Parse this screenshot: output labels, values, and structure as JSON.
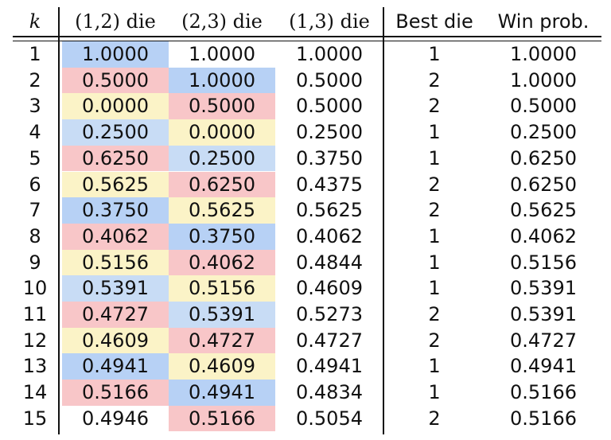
{
  "colors": {
    "blue": "#c8dcf5",
    "blue_strong": "#b7d1f5",
    "red": "#f8c6c8",
    "yellow": "#fbf3c7"
  },
  "headers": [
    "k",
    "(1,2) die",
    "(2,3) die",
    "(1,3) die",
    "Best die",
    "Win prob."
  ],
  "rows": [
    {
      "k": "1",
      "d12": "1.0000",
      "d23": "1.0000",
      "d13": "1.0000",
      "best": "1",
      "win": "1.0000",
      "c12": "blue_strong",
      "c23": ""
    },
    {
      "k": "2",
      "d12": "0.5000",
      "d23": "1.0000",
      "d13": "0.5000",
      "best": "2",
      "win": "1.0000",
      "c12": "red",
      "c23": "blue_strong"
    },
    {
      "k": "3",
      "d12": "0.0000",
      "d23": "0.5000",
      "d13": "0.5000",
      "best": "2",
      "win": "0.5000",
      "c12": "yellow",
      "c23": "red"
    },
    {
      "k": "4",
      "d12": "0.2500",
      "d23": "0.0000",
      "d13": "0.2500",
      "best": "1",
      "win": "0.2500",
      "c12": "blue",
      "c23": "yellow"
    },
    {
      "k": "5",
      "d12": "0.6250",
      "d23": "0.2500",
      "d13": "0.3750",
      "best": "1",
      "win": "0.6250",
      "c12": "red",
      "c23": "blue"
    },
    {
      "k": "6",
      "d12": "0.5625",
      "d23": "0.6250",
      "d13": "0.4375",
      "best": "2",
      "win": "0.6250",
      "c12": "yellow",
      "c23": "red"
    },
    {
      "k": "7",
      "d12": "0.3750",
      "d23": "0.5625",
      "d13": "0.5625",
      "best": "2",
      "win": "0.5625",
      "c12": "blue_strong",
      "c23": "yellow"
    },
    {
      "k": "8",
      "d12": "0.4062",
      "d23": "0.3750",
      "d13": "0.4062",
      "best": "1",
      "win": "0.4062",
      "c12": "red",
      "c23": "blue_strong"
    },
    {
      "k": "9",
      "d12": "0.5156",
      "d23": "0.4062",
      "d13": "0.4844",
      "best": "1",
      "win": "0.5156",
      "c12": "yellow",
      "c23": "red"
    },
    {
      "k": "10",
      "d12": "0.5391",
      "d23": "0.5156",
      "d13": "0.4609",
      "best": "1",
      "win": "0.5391",
      "c12": "blue",
      "c23": "yellow"
    },
    {
      "k": "11",
      "d12": "0.4727",
      "d23": "0.5391",
      "d13": "0.5273",
      "best": "2",
      "win": "0.5391",
      "c12": "red",
      "c23": "blue"
    },
    {
      "k": "12",
      "d12": "0.4609",
      "d23": "0.4727",
      "d13": "0.4727",
      "best": "2",
      "win": "0.4727",
      "c12": "yellow",
      "c23": "red"
    },
    {
      "k": "13",
      "d12": "0.4941",
      "d23": "0.4609",
      "d13": "0.4941",
      "best": "1",
      "win": "0.4941",
      "c12": "blue_strong",
      "c23": "yellow"
    },
    {
      "k": "14",
      "d12": "0.5166",
      "d23": "0.4941",
      "d13": "0.4834",
      "best": "1",
      "win": "0.5166",
      "c12": "red",
      "c23": "blue_strong"
    },
    {
      "k": "15",
      "d12": "0.4946",
      "d23": "0.5166",
      "d13": "0.5054",
      "best": "2",
      "win": "0.5166",
      "c12": "",
      "c23": "red"
    }
  ]
}
